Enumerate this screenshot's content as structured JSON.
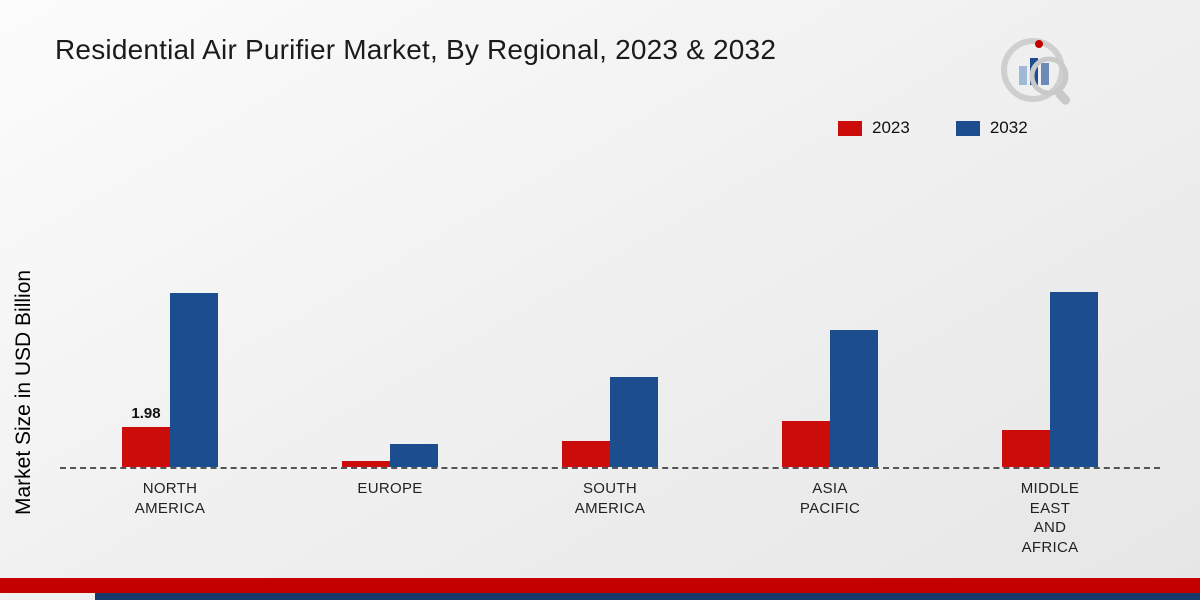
{
  "title": "Residential Air Purifier Market, By Regional, 2023 & 2032",
  "ylabel": "Market Size in USD Billion",
  "legend": [
    {
      "label": "2023",
      "color": "#cc0b0b"
    },
    {
      "label": "2032",
      "color": "#1c4e8f"
    }
  ],
  "chart_data": {
    "type": "bar",
    "title": "Residential Air Purifier Market, By Regional, 2023 & 2032",
    "xlabel": "",
    "ylabel": "Market Size in USD Billion",
    "categories": [
      "NORTH\nAMERICA",
      "EUROPE",
      "SOUTH\nAMERICA",
      "ASIA\nPACIFIC",
      "MIDDLE\nEAST\nAND\nAFRICA"
    ],
    "series": [
      {
        "name": "2023",
        "color": "#cc0b0b",
        "values": [
          1.98,
          0.3,
          1.3,
          2.3,
          1.85
        ],
        "value_labels": [
          "1.98",
          "",
          "",
          "",
          ""
        ]
      },
      {
        "name": "2032",
        "color": "#1c4e8f",
        "values": [
          8.7,
          1.15,
          4.5,
          6.85,
          8.75
        ],
        "value_labels": [
          "",
          "",
          "",
          "",
          ""
        ]
      }
    ],
    "ylim": [
      0,
      10
    ],
    "grid": false,
    "legend_position": "top-right",
    "baseline_style": "dashed"
  },
  "footer": {
    "red_band_color": "#c40000",
    "navy_band_color": "#173a6a"
  }
}
